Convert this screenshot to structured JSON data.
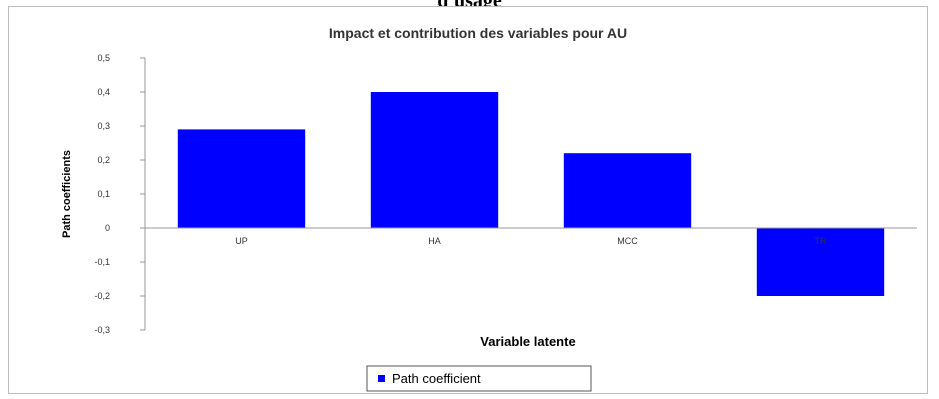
{
  "figure_caption": "d'usage",
  "chart_data": {
    "type": "bar",
    "title": "Impact et contribution des variables pour AU",
    "xlabel": "Variable latente",
    "ylabel": "Path coefficients",
    "categories": [
      "UP",
      "HA",
      "MCC",
      "TR"
    ],
    "series": [
      {
        "name": "Path coefficient",
        "values": [
          0.29,
          0.4,
          0.22,
          -0.2
        ],
        "color": "#0000ff"
      }
    ],
    "ylim": [
      -0.3,
      0.5
    ],
    "yticks": [
      {
        "value": 0.5,
        "label": "0,5"
      },
      {
        "value": 0.4,
        "label": "0,4"
      },
      {
        "value": 0.3,
        "label": "0,3"
      },
      {
        "value": 0.2,
        "label": "0,2"
      },
      {
        "value": 0.1,
        "label": "0,1"
      },
      {
        "value": 0,
        "label": "0"
      },
      {
        "value": -0.1,
        "label": "-0,1"
      },
      {
        "value": -0.2,
        "label": "-0,2"
      },
      {
        "value": -0.3,
        "label": "-0,3"
      }
    ],
    "grid": false,
    "legend": "bottom"
  }
}
